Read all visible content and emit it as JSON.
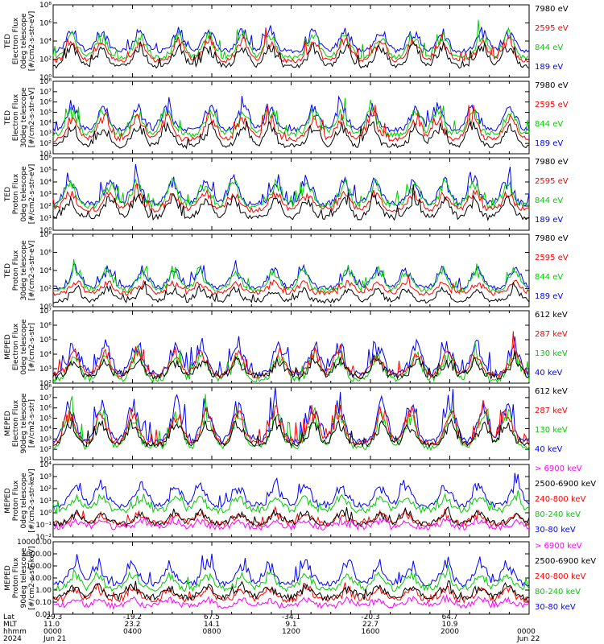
{
  "chart_data": [
    {
      "type": "line",
      "ylabel_lines": [
        "TED",
        "Electron Flux",
        "0deg telescope",
        "[#/cm2-s-str-eV]"
      ],
      "y_ticks": [
        "10⁰",
        "10²",
        "10⁴",
        "10⁶",
        "10⁸"
      ],
      "scale": "log",
      "ylim_exp": [
        0,
        8
      ],
      "series": [
        {
          "name": "7980 eV",
          "color": "#000000",
          "base": 1.2,
          "amp": 2.5
        },
        {
          "name": "2595 eV",
          "color": "#ff0000",
          "base": 1.8,
          "amp": 2.6
        },
        {
          "name": "844 eV",
          "color": "#00cc00",
          "base": 2.2,
          "amp": 2.8
        },
        {
          "name": "189 eV",
          "color": "#0000ff",
          "base": 2.9,
          "amp": 2.5
        }
      ]
    },
    {
      "type": "line",
      "ylabel_lines": [
        "TED",
        "Electron Flux",
        "30deg telescope",
        "[#/cm2-s-str-eV]"
      ],
      "y_ticks": [
        "10¹",
        "10²",
        "10³",
        "10⁴",
        "10⁵",
        "10⁶",
        "10⁷",
        "10⁸"
      ],
      "scale": "log",
      "ylim_exp": [
        0.5,
        8
      ],
      "series": [
        {
          "name": "7980 eV",
          "color": "#000000",
          "base": 1.3,
          "amp": 2.4
        },
        {
          "name": "2595 eV",
          "color": "#ff0000",
          "base": 2.0,
          "amp": 2.6
        },
        {
          "name": "844 eV",
          "color": "#00cc00",
          "base": 2.5,
          "amp": 2.7
        },
        {
          "name": "189 eV",
          "color": "#0000ff",
          "base": 3.0,
          "amp": 2.6
        }
      ]
    },
    {
      "type": "line",
      "ylabel_lines": [
        "TED",
        "Proton Flux",
        "0deg telescope",
        "[#/cm2-s-str-eV]"
      ],
      "y_ticks": [
        "10⁰",
        "10¹",
        "10²",
        "10³",
        "10⁴",
        "10⁵",
        "10⁶"
      ],
      "scale": "log",
      "ylim_exp": [
        -0.3,
        6
      ],
      "series": [
        {
          "name": "7980 eV",
          "color": "#000000",
          "base": 0.8,
          "amp": 1.8
        },
        {
          "name": "2595 eV",
          "color": "#ff0000",
          "base": 1.5,
          "amp": 1.6
        },
        {
          "name": "844 eV",
          "color": "#00cc00",
          "base": 1.8,
          "amp": 2.2
        },
        {
          "name": "189 eV",
          "color": "#0000ff",
          "base": 2.0,
          "amp": 2.2
        }
      ]
    },
    {
      "type": "line",
      "ylabel_lines": [
        "TED",
        "Proton Flux",
        "30deg telescope",
        "[#/cm2-s-str-eV]"
      ],
      "y_ticks": [
        "10⁰",
        "10²",
        "10⁴",
        "10⁶",
        "10⁸"
      ],
      "scale": "log",
      "ylim_exp": [
        0,
        8
      ],
      "series": [
        {
          "name": "7980 eV",
          "color": "#000000",
          "base": 0.6,
          "amp": 1.5
        },
        {
          "name": "2595 eV",
          "color": "#ff0000",
          "base": 1.5,
          "amp": 1.3
        },
        {
          "name": "844 eV",
          "color": "#00cc00",
          "base": 1.8,
          "amp": 2.4
        },
        {
          "name": "189 eV",
          "color": "#0000ff",
          "base": 2.1,
          "amp": 2.3
        }
      ]
    },
    {
      "type": "line",
      "ylabel_lines": [
        "MEPED",
        "Electron Flux",
        "0deg telescope",
        "[#/cm2-s-str]"
      ],
      "y_ticks": [
        "10²",
        "10³",
        "10⁴",
        "10⁵",
        "10⁶",
        "10⁷"
      ],
      "scale": "log",
      "ylim_exp": [
        1.7,
        7
      ],
      "series": [
        {
          "name": "612 keV",
          "color": "#000000",
          "base": 2.2,
          "amp": 1.2
        },
        {
          "name": "287 keV",
          "color": "#ff0000",
          "base": 2.3,
          "amp": 1.8
        },
        {
          "name": "130 keV",
          "color": "#00cc00",
          "base": 2.0,
          "amp": 2.0
        },
        {
          "name": "40 keV",
          "color": "#0000ff",
          "base": 2.4,
          "amp": 2.4
        }
      ]
    },
    {
      "type": "line",
      "ylabel_lines": [
        "MEPED",
        "Electron Flux",
        "90deg telescope",
        "[#/cm2-s-str]"
      ],
      "y_ticks": [
        "10¹",
        "10²",
        "10³",
        "10⁴",
        "10⁵",
        "10⁶",
        "10⁷",
        "10⁸"
      ],
      "scale": "log",
      "ylim_exp": [
        0.8,
        8
      ],
      "series": [
        {
          "name": "612 keV",
          "color": "#000000",
          "base": 2.3,
          "amp": 2.3
        },
        {
          "name": "287 keV",
          "color": "#ff0000",
          "base": 2.4,
          "amp": 3.6
        },
        {
          "name": "130 keV",
          "color": "#00cc00",
          "base": 2.0,
          "amp": 3.8
        },
        {
          "name": "40 keV",
          "color": "#0000ff",
          "base": 2.6,
          "amp": 4.0
        }
      ]
    },
    {
      "type": "line",
      "ylabel_lines": [
        "MEPED",
        "Proton Flux",
        "0deg telescope",
        "[#/cm2-s-str-keV]"
      ],
      "y_ticks": [
        "10⁻²",
        "10⁻¹",
        "10⁰",
        "10¹",
        "10²",
        "10³",
        "10⁴"
      ],
      "scale": "log",
      "ylim_exp": [
        -2,
        4
      ],
      "series": [
        {
          "name": "> 6900 keV",
          "color": "#ff00ff",
          "base": -1.2,
          "amp": 0.6
        },
        {
          "name": "2500-6900 keV",
          "color": "#000000",
          "base": -0.9,
          "amp": 1.0
        },
        {
          "name": "240-800 keV",
          "color": "#ff0000",
          "base": -0.9,
          "amp": 0.9
        },
        {
          "name": "80-240 keV",
          "color": "#00cc00",
          "base": 0.2,
          "amp": 1.2
        },
        {
          "name": "30-80 keV",
          "color": "#0000ff",
          "base": 0.6,
          "amp": 1.9
        }
      ]
    },
    {
      "type": "line",
      "ylabel_lines": [
        "MEPED",
        "Proton Flux",
        "90deg telescope",
        "[#/cm2-s-str-keV]"
      ],
      "y_ticks": [
        "0.01",
        "0.10",
        "1.00",
        "10.00",
        "100.00",
        "1000.00",
        "10000.00"
      ],
      "scale": "log",
      "ylim_exp": [
        -2,
        4
      ],
      "series": [
        {
          "name": "> 6900 keV",
          "color": "#ff00ff",
          "base": -1.3,
          "amp": 0.6
        },
        {
          "name": "2500-6900 keV",
          "color": "#000000",
          "base": -0.6,
          "amp": 1.0
        },
        {
          "name": "240-800 keV",
          "color": "#ff0000",
          "base": -0.8,
          "amp": 1.0
        },
        {
          "name": "80-240 keV",
          "color": "#00cc00",
          "base": 0.1,
          "amp": 1.3
        },
        {
          "name": "30-80 keV",
          "color": "#0000ff",
          "base": 0.5,
          "amp": 2.0
        }
      ]
    }
  ],
  "x_axis": {
    "row_labels": [
      "Lat",
      "MLT",
      "hhmm",
      "2024"
    ],
    "columns": [
      {
        "lat": "-29.3",
        "mlt": "11.0",
        "hhmm": "0000",
        "date": "Jun 21"
      },
      {
        "lat": "-19.2",
        "mlt": "23.2",
        "hhmm": "0400",
        "date": ""
      },
      {
        "lat": "67.5",
        "mlt": "14.1",
        "hhmm": "0800",
        "date": ""
      },
      {
        "lat": "-34.1",
        "mlt": "9.1",
        "hhmm": "1200",
        "date": ""
      },
      {
        "lat": "-20.3",
        "mlt": "22.7",
        "hhmm": "1600",
        "date": ""
      },
      {
        "lat": "64.7",
        "mlt": "10.9",
        "hhmm": "2000",
        "date": ""
      },
      {
        "lat": "",
        "mlt": "",
        "hhmm": "0000",
        "date": "Jun 22"
      }
    ]
  }
}
